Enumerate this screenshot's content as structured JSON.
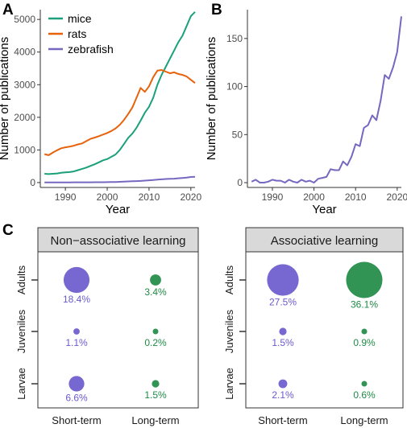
{
  "colors": {
    "mice": "#1aa07a",
    "rats": "#e8620c",
    "zebrafish": "#7468c0",
    "short_term": "#6a5acd",
    "long_term": "#1f8a45",
    "strip_bg": "#d9d9d9",
    "axis": "#333333"
  },
  "chart_data": [
    {
      "panel": "A",
      "type": "line",
      "xlabel": "Year",
      "ylabel": "Number of publications",
      "xlim": [
        1984,
        2021
      ],
      "ylim": [
        -150,
        5300
      ],
      "xticks": [
        1990,
        2000,
        2010,
        2020
      ],
      "yticks": [
        0,
        1000,
        2000,
        3000,
        4000,
        5000
      ],
      "legend": "top-left",
      "grid": false,
      "x": [
        1985,
        1986,
        1987,
        1988,
        1989,
        1990,
        1991,
        1992,
        1993,
        1994,
        1995,
        1996,
        1997,
        1998,
        1999,
        2000,
        2001,
        2002,
        2003,
        2004,
        2005,
        2006,
        2007,
        2008,
        2009,
        2010,
        2011,
        2012,
        2013,
        2014,
        2015,
        2016,
        2017,
        2018,
        2019,
        2020,
        2021
      ],
      "series": [
        {
          "name": "mice",
          "values": [
            270,
            260,
            270,
            280,
            300,
            310,
            320,
            340,
            380,
            420,
            460,
            510,
            560,
            620,
            680,
            720,
            790,
            860,
            1000,
            1180,
            1370,
            1500,
            1680,
            1900,
            2140,
            2320,
            2600,
            3000,
            3300,
            3550,
            3800,
            4050,
            4300,
            4500,
            4800,
            5100,
            5230
          ]
        },
        {
          "name": "rats",
          "values": [
            870,
            840,
            920,
            990,
            1050,
            1080,
            1100,
            1130,
            1170,
            1200,
            1270,
            1340,
            1380,
            1420,
            1470,
            1520,
            1580,
            1660,
            1770,
            1920,
            2100,
            2300,
            2600,
            2900,
            2780,
            2950,
            3230,
            3430,
            3450,
            3400,
            3350,
            3380,
            3330,
            3300,
            3250,
            3150,
            3050
          ]
        },
        {
          "name": "zebrafish",
          "values": [
            5,
            5,
            5,
            5,
            5,
            5,
            5,
            8,
            8,
            8,
            8,
            8,
            10,
            10,
            10,
            12,
            14,
            18,
            22,
            28,
            34,
            40,
            45,
            50,
            60,
            70,
            80,
            90,
            100,
            110,
            115,
            120,
            130,
            140,
            150,
            170,
            175
          ]
        }
      ]
    },
    {
      "panel": "B",
      "type": "line",
      "xlabel": "Year",
      "ylabel": "Number of publications",
      "xlim": [
        1984,
        2021
      ],
      "ylim": [
        -5,
        180
      ],
      "xticks": [
        1990,
        2000,
        2010,
        2020
      ],
      "yticks": [
        0,
        50,
        100,
        150
      ],
      "grid": false,
      "x": [
        1985,
        1986,
        1987,
        1988,
        1989,
        1990,
        1991,
        1992,
        1993,
        1994,
        1995,
        1996,
        1997,
        1998,
        1999,
        2000,
        2001,
        2002,
        2003,
        2004,
        2005,
        2006,
        2007,
        2008,
        2009,
        2010,
        2011,
        2012,
        2013,
        2014,
        2015,
        2016,
        2017,
        2018,
        2019,
        2020,
        2021
      ],
      "series": [
        {
          "name": "zebrafish",
          "values": [
            1,
            3,
            0,
            0,
            1,
            3,
            2,
            2,
            0,
            3,
            1,
            0,
            3,
            1,
            2,
            0,
            4,
            5,
            6,
            14,
            13,
            13,
            22,
            18,
            27,
            40,
            38,
            57,
            60,
            70,
            65,
            85,
            112,
            108,
            120,
            136,
            173
          ]
        }
      ]
    },
    {
      "panel": "C",
      "type": "bubble",
      "facets": [
        "Non−associative learning",
        "Associative learning"
      ],
      "x_categories": [
        "Short-term",
        "Long-term"
      ],
      "y_categories": [
        "Adults",
        "Juveniles",
        "Larvae"
      ],
      "values": [
        {
          "Adults": [
            18.4,
            3.4
          ],
          "Juveniles": [
            1.1,
            0.2
          ],
          "Larvae": [
            6.6,
            1.5
          ]
        },
        {
          "Adults": [
            27.5,
            36.1
          ],
          "Juveniles": [
            1.5,
            0.9
          ],
          "Larvae": [
            2.1,
            0.6
          ]
        }
      ],
      "labels": [
        {
          "Adults": [
            "18.4%",
            "3.4%"
          ],
          "Juveniles": [
            "1.1%",
            "0.2%"
          ],
          "Larvae": [
            "6.6%",
            "1.5%"
          ]
        },
        {
          "Adults": [
            "27.5%",
            "36.1%"
          ],
          "Juveniles": [
            "1.5%",
            "0.9%"
          ],
          "Larvae": [
            "2.1%",
            "0.6%"
          ]
        }
      ]
    }
  ]
}
